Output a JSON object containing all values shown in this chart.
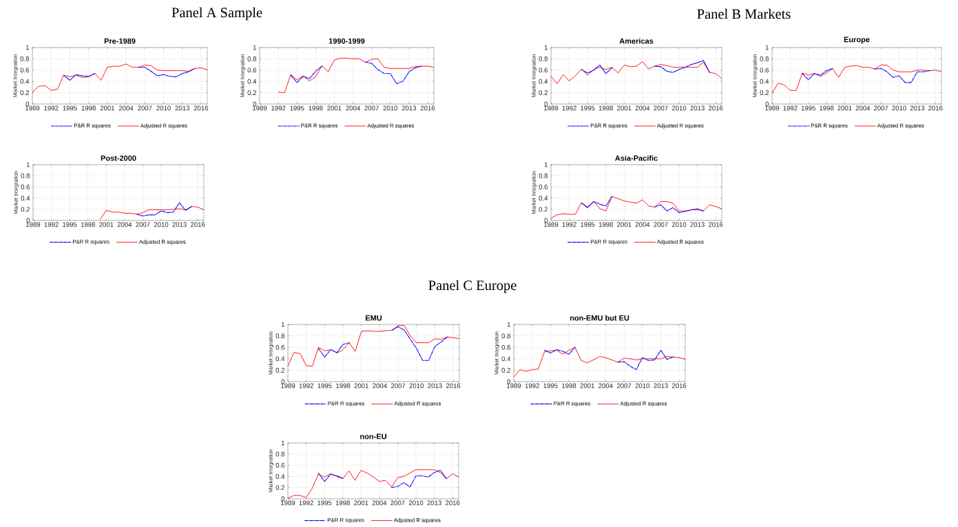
{
  "chart_data": [
    {
      "type": "other",
      "title": "Panel A Sample"
    },
    {
      "type": "other",
      "title": "Panel B Markets"
    },
    {
      "type": "line",
      "title": "Pre-1989",
      "ylabel": "Market Integration",
      "x": [
        1989,
        1990,
        1991,
        1992,
        1993,
        1994,
        1995,
        1996,
        1997,
        1998,
        1999,
        2000,
        2001,
        2002,
        2003,
        2004,
        2005,
        2006,
        2007,
        2008,
        2009,
        2010,
        2011,
        2012,
        2013,
        2014,
        2015,
        2016,
        2017
      ],
      "xlim": [
        1989,
        2017
      ],
      "xticks": [
        1989,
        1992,
        1995,
        1998,
        2001,
        2004,
        2007,
        2010,
        2013,
        2016
      ],
      "ylim": [
        0,
        1
      ],
      "yticks": [
        0,
        0.2,
        0.4,
        0.6,
        0.8,
        1
      ],
      "grid": true,
      "legend": "bottom",
      "series": [
        {
          "name": "P&R R squares",
          "color": "#0000ff",
          "line_style": "dashdot",
          "values": [
            null,
            null,
            null,
            null,
            null,
            0.51,
            0.42,
            0.52,
            0.5,
            0.49,
            0.54,
            null,
            null,
            null,
            null,
            null,
            null,
            0.65,
            0.65,
            0.58,
            0.5,
            0.52,
            0.49,
            0.48,
            0.54,
            0.57,
            0.63,
            null,
            null
          ]
        },
        {
          "name": "Adjusted R squares",
          "color": "#ff0000",
          "line_style": "solid",
          "values": [
            0.21,
            0.31,
            0.33,
            0.24,
            0.26,
            0.51,
            0.48,
            0.51,
            0.47,
            0.48,
            0.54,
            0.42,
            0.65,
            0.67,
            0.67,
            0.71,
            0.65,
            0.65,
            0.69,
            0.68,
            0.6,
            0.59,
            0.59,
            0.59,
            0.59,
            0.58,
            0.63,
            0.64,
            0.61
          ]
        }
      ]
    },
    {
      "type": "line",
      "title": "1990-1999",
      "ylabel": "Market Integration",
      "x": [
        1992,
        1993,
        1994,
        1995,
        1996,
        1997,
        1998,
        1999,
        2000,
        2001,
        2002,
        2003,
        2004,
        2005,
        2006,
        2007,
        2008,
        2009,
        2010,
        2011,
        2012,
        2013,
        2014,
        2015,
        2016,
        2017
      ],
      "xlim": [
        1989,
        2017
      ],
      "xticks": [
        1989,
        1992,
        1995,
        1998,
        2001,
        2004,
        2007,
        2010,
        2013,
        2016
      ],
      "ylim": [
        0,
        1
      ],
      "yticks": [
        0,
        0.2,
        0.4,
        0.6,
        0.8,
        1
      ],
      "grid": true,
      "legend": "bottom",
      "series": [
        {
          "name": "P&R R squares",
          "color": "#0000ff",
          "line_style": "dashdot",
          "values": [
            null,
            null,
            0.51,
            0.38,
            0.49,
            0.45,
            0.58,
            0.67,
            null,
            null,
            null,
            null,
            null,
            null,
            0.74,
            0.72,
            0.61,
            0.54,
            0.54,
            0.36,
            0.4,
            0.57,
            0.64,
            0.67,
            null,
            null
          ]
        },
        {
          "name": "Adjusted R squares",
          "color": "#ff0000",
          "line_style": "solid",
          "values": [
            0.21,
            0.2,
            0.52,
            0.43,
            0.5,
            0.41,
            0.48,
            0.68,
            0.57,
            0.78,
            0.81,
            0.81,
            0.8,
            0.8,
            0.74,
            0.79,
            0.8,
            0.65,
            0.63,
            0.63,
            0.63,
            0.63,
            0.66,
            0.67,
            0.67,
            0.65
          ]
        }
      ]
    },
    {
      "type": "line",
      "title": "Americas",
      "ylabel": "Market Integration",
      "x": [
        1989,
        1990,
        1991,
        1992,
        1993,
        1994,
        1995,
        1996,
        1997,
        1998,
        1999,
        2000,
        2001,
        2002,
        2003,
        2004,
        2005,
        2006,
        2007,
        2008,
        2009,
        2010,
        2011,
        2012,
        2013,
        2014,
        2015,
        2016,
        2017
      ],
      "xlim": [
        1989,
        2017
      ],
      "xticks": [
        1989,
        1992,
        1995,
        1998,
        2001,
        2004,
        2007,
        2010,
        2013,
        2016
      ],
      "ylim": [
        0,
        1
      ],
      "yticks": [
        0,
        0.2,
        0.4,
        0.6,
        0.8,
        1
      ],
      "grid": true,
      "legend": "bottom",
      "series": [
        {
          "name": "P&R R squares",
          "color": "#0000ff",
          "line_style": "dashdot",
          "values": [
            null,
            null,
            null,
            null,
            null,
            0.61,
            0.55,
            0.6,
            0.69,
            0.54,
            0.64,
            null,
            null,
            null,
            null,
            null,
            null,
            0.67,
            0.66,
            0.58,
            0.56,
            0.61,
            0.65,
            0.7,
            0.73,
            0.77,
            0.56,
            null,
            null
          ]
        },
        {
          "name": "Adjusted R squares",
          "color": "#ff0000",
          "line_style": "solid",
          "values": [
            0.49,
            0.36,
            0.52,
            0.41,
            0.5,
            0.62,
            0.51,
            0.61,
            0.65,
            0.61,
            0.65,
            0.55,
            0.69,
            0.66,
            0.67,
            0.75,
            0.62,
            0.67,
            0.7,
            0.68,
            0.65,
            0.65,
            0.65,
            0.65,
            0.65,
            0.74,
            0.56,
            0.54,
            0.45
          ]
        }
      ]
    },
    {
      "type": "line",
      "title": "Europe",
      "ylabel": "Market Integration",
      "x": [
        1989,
        1990,
        1991,
        1992,
        1993,
        1994,
        1995,
        1996,
        1997,
        1998,
        1999,
        2000,
        2001,
        2002,
        2003,
        2004,
        2005,
        2006,
        2007,
        2008,
        2009,
        2010,
        2011,
        2012,
        2013,
        2014,
        2015,
        2016,
        2017
      ],
      "xlim": [
        1989,
        2017
      ],
      "xticks": [
        1989,
        1992,
        1995,
        1998,
        2001,
        2004,
        2007,
        2010,
        2013,
        2016
      ],
      "ylim": [
        0,
        1
      ],
      "yticks": [
        0,
        0.2,
        0.4,
        0.6,
        0.8,
        1
      ],
      "grid": true,
      "legend": "bottom",
      "series": [
        {
          "name": "P&R R squares",
          "color": "#0000ff",
          "line_style": "dashdot",
          "values": [
            null,
            null,
            null,
            null,
            null,
            0.54,
            0.43,
            0.54,
            0.51,
            0.59,
            0.63,
            null,
            null,
            null,
            null,
            null,
            null,
            0.62,
            0.63,
            0.57,
            0.47,
            0.5,
            0.38,
            0.38,
            0.57,
            0.57,
            0.59,
            null,
            null
          ]
        },
        {
          "name": "Adjusted R squares",
          "color": "#ff0000",
          "line_style": "solid",
          "values": [
            0.19,
            0.37,
            0.34,
            0.24,
            0.24,
            0.55,
            0.51,
            0.54,
            0.49,
            0.55,
            0.63,
            0.47,
            0.65,
            0.67,
            0.68,
            0.65,
            0.65,
            0.62,
            0.69,
            0.69,
            0.6,
            0.57,
            0.57,
            0.57,
            0.6,
            0.6,
            0.59,
            0.6,
            0.57
          ]
        }
      ]
    },
    {
      "type": "line",
      "title": "Post-2000",
      "ylabel": "Market Integration",
      "x": [
        2000,
        2001,
        2002,
        2003,
        2004,
        2005,
        2006,
        2007,
        2008,
        2009,
        2010,
        2011,
        2012,
        2013,
        2014,
        2015,
        2016,
        2017
      ],
      "xlim": [
        1989,
        2017
      ],
      "xticks": [
        1989,
        1992,
        1995,
        1998,
        2001,
        2004,
        2007,
        2010,
        2013,
        2016
      ],
      "ylim": [
        0,
        1
      ],
      "yticks": [
        0,
        0.2,
        0.4,
        0.6,
        0.8,
        1
      ],
      "grid": true,
      "legend": "bottom",
      "series": [
        {
          "name": "P&R R squares",
          "color": "#0000ff",
          "line_style": "dashdot",
          "values": [
            null,
            null,
            null,
            null,
            null,
            null,
            0.11,
            0.08,
            0.1,
            0.1,
            0.17,
            0.14,
            0.15,
            0.32,
            0.18,
            0.25,
            null,
            null
          ]
        },
        {
          "name": "Adjusted R squares",
          "color": "#ff0000",
          "line_style": "solid",
          "values": [
            0.02,
            0.18,
            0.15,
            0.15,
            0.13,
            0.13,
            0.11,
            0.14,
            0.19,
            0.19,
            0.19,
            0.19,
            0.2,
            0.21,
            0.19,
            0.25,
            0.24,
            0.19
          ]
        }
      ]
    },
    {
      "type": "line",
      "title": "Asia-Pacific",
      "ylabel": "Market Integration",
      "x": [
        1989,
        1990,
        1991,
        1992,
        1993,
        1994,
        1995,
        1996,
        1997,
        1998,
        1999,
        2000,
        2001,
        2002,
        2003,
        2004,
        2005,
        2006,
        2007,
        2008,
        2009,
        2010,
        2011,
        2012,
        2013,
        2014,
        2015,
        2016,
        2017
      ],
      "xlim": [
        1989,
        2017
      ],
      "xticks": [
        1989,
        1992,
        1995,
        1998,
        2001,
        2004,
        2007,
        2010,
        2013,
        2016
      ],
      "ylim": [
        0,
        1
      ],
      "yticks": [
        0,
        0.2,
        0.4,
        0.6,
        0.8,
        1
      ],
      "grid": true,
      "legend": "bottom",
      "series": [
        {
          "name": "P&R R squares",
          "color": "#0000ff",
          "line_style": "dashdot",
          "values": [
            null,
            null,
            null,
            null,
            null,
            0.31,
            0.23,
            0.34,
            0.29,
            0.26,
            0.43,
            null,
            null,
            null,
            null,
            null,
            null,
            0.24,
            0.28,
            0.17,
            0.23,
            0.14,
            0.16,
            0.19,
            0.21,
            0.17,
            null,
            null,
            null
          ]
        },
        {
          "name": "Adjusted R squares",
          "color": "#ff0000",
          "line_style": "solid",
          "values": [
            0.04,
            0.1,
            0.12,
            0.11,
            0.11,
            0.32,
            0.24,
            0.34,
            0.21,
            0.17,
            0.43,
            0.39,
            0.35,
            0.33,
            0.31,
            0.37,
            0.26,
            0.24,
            0.34,
            0.34,
            0.31,
            0.17,
            0.17,
            0.19,
            0.19,
            0.17,
            0.28,
            0.25,
            0.21
          ]
        }
      ]
    },
    {
      "type": "other",
      "title": "Panel C Europe"
    },
    {
      "type": "line",
      "title": "EMU",
      "ylabel": "Market Integration",
      "x": [
        1989,
        1990,
        1991,
        1992,
        1993,
        1994,
        1995,
        1996,
        1997,
        1998,
        1999,
        2000,
        2001,
        2002,
        2003,
        2004,
        2005,
        2006,
        2007,
        2008,
        2009,
        2010,
        2011,
        2012,
        2013,
        2014,
        2015,
        2016,
        2017
      ],
      "xlim": [
        1989,
        2017
      ],
      "xticks": [
        1989,
        1992,
        1995,
        1998,
        2001,
        2004,
        2007,
        2010,
        2013,
        2016
      ],
      "ylim": [
        0,
        1
      ],
      "yticks": [
        0,
        0.2,
        0.4,
        0.6,
        0.8,
        1
      ],
      "grid": true,
      "legend": "bottom",
      "series": [
        {
          "name": "P&R R squares",
          "color": "#0000ff",
          "line_style": "dashdot",
          "values": [
            null,
            null,
            null,
            null,
            null,
            0.58,
            0.43,
            0.56,
            0.51,
            0.65,
            0.68,
            null,
            null,
            null,
            null,
            null,
            null,
            0.9,
            0.96,
            0.9,
            0.74,
            0.58,
            0.37,
            0.37,
            0.62,
            0.69,
            0.78,
            null,
            null
          ]
        },
        {
          "name": "Adjusted R squares",
          "color": "#ff0000",
          "line_style": "solid",
          "values": [
            0.27,
            0.51,
            0.49,
            0.28,
            0.27,
            0.6,
            0.54,
            0.56,
            0.5,
            0.56,
            0.68,
            0.53,
            0.88,
            0.89,
            0.88,
            0.88,
            0.89,
            0.9,
            0.98,
            0.98,
            0.8,
            0.68,
            0.68,
            0.68,
            0.75,
            0.74,
            0.78,
            0.77,
            0.75
          ]
        }
      ]
    },
    {
      "type": "line",
      "title": "non-EMU but EU",
      "ylabel": "Market Integration",
      "x": [
        1989,
        1990,
        1991,
        1992,
        1993,
        1994,
        1995,
        1996,
        1997,
        1998,
        1999,
        2000,
        2001,
        2002,
        2003,
        2004,
        2005,
        2006,
        2007,
        2008,
        2009,
        2010,
        2011,
        2012,
        2013,
        2014,
        2015,
        2016,
        2017
      ],
      "xlim": [
        1989,
        2017
      ],
      "xticks": [
        1989,
        1992,
        1995,
        1998,
        2001,
        2004,
        2007,
        2010,
        2013,
        2016
      ],
      "ylim": [
        0,
        1
      ],
      "yticks": [
        0,
        0.2,
        0.4,
        0.6,
        0.8,
        1
      ],
      "grid": true,
      "legend": "bottom",
      "series": [
        {
          "name": "P&R R squares",
          "color": "#0000ff",
          "line_style": "dashdot",
          "values": [
            null,
            null,
            null,
            null,
            null,
            0.55,
            0.5,
            0.56,
            0.53,
            0.48,
            0.6,
            null,
            null,
            null,
            null,
            null,
            null,
            0.34,
            0.35,
            0.27,
            0.21,
            0.42,
            0.37,
            0.38,
            0.55,
            0.39,
            0.43,
            null,
            null
          ]
        },
        {
          "name": "Adjusted R squares",
          "color": "#ff0000",
          "line_style": "solid",
          "values": [
            0.08,
            0.21,
            0.18,
            0.21,
            0.22,
            0.52,
            0.54,
            0.55,
            0.48,
            0.55,
            0.6,
            0.37,
            0.33,
            0.38,
            0.44,
            0.42,
            0.38,
            0.34,
            0.41,
            0.4,
            0.38,
            0.4,
            0.4,
            0.4,
            0.4,
            0.44,
            0.43,
            0.42,
            0.39
          ]
        }
      ]
    },
    {
      "type": "line",
      "title": "non-EU",
      "ylabel": "Market Integration",
      "x": [
        1989,
        1990,
        1991,
        1992,
        1993,
        1994,
        1995,
        1996,
        1997,
        1998,
        1999,
        2000,
        2001,
        2002,
        2003,
        2004,
        2005,
        2006,
        2007,
        2008,
        2009,
        2010,
        2011,
        2012,
        2013,
        2014,
        2015,
        2016,
        2017
      ],
      "xlim": [
        1989,
        2017
      ],
      "xticks": [
        1989,
        1992,
        1995,
        1998,
        2001,
        2004,
        2007,
        2010,
        2013,
        2016
      ],
      "ylim": [
        0,
        1
      ],
      "yticks": [
        0,
        0.2,
        0.4,
        0.6,
        0.8,
        1
      ],
      "grid": true,
      "legend": "bottom",
      "series": [
        {
          "name": "P&R R squares",
          "color": "#0000ff",
          "line_style": "dashdot",
          "values": [
            null,
            null,
            null,
            null,
            null,
            0.46,
            0.31,
            0.44,
            0.41,
            0.37,
            null,
            null,
            null,
            null,
            null,
            null,
            null,
            0.2,
            0.22,
            0.29,
            0.21,
            0.41,
            0.41,
            0.39,
            0.47,
            0.51,
            0.36,
            null,
            null
          ]
        },
        {
          "name": "Adjusted R squares",
          "color": "#ff0000",
          "line_style": "solid",
          "values": [
            0.01,
            0.06,
            0.06,
            0.02,
            0.19,
            0.44,
            0.39,
            0.45,
            0.4,
            0.36,
            0.5,
            0.33,
            0.51,
            0.46,
            0.39,
            0.31,
            0.33,
            0.21,
            0.38,
            0.4,
            0.46,
            0.52,
            0.52,
            0.52,
            0.52,
            0.47,
            0.36,
            0.45,
            0.39
          ]
        }
      ]
    }
  ]
}
